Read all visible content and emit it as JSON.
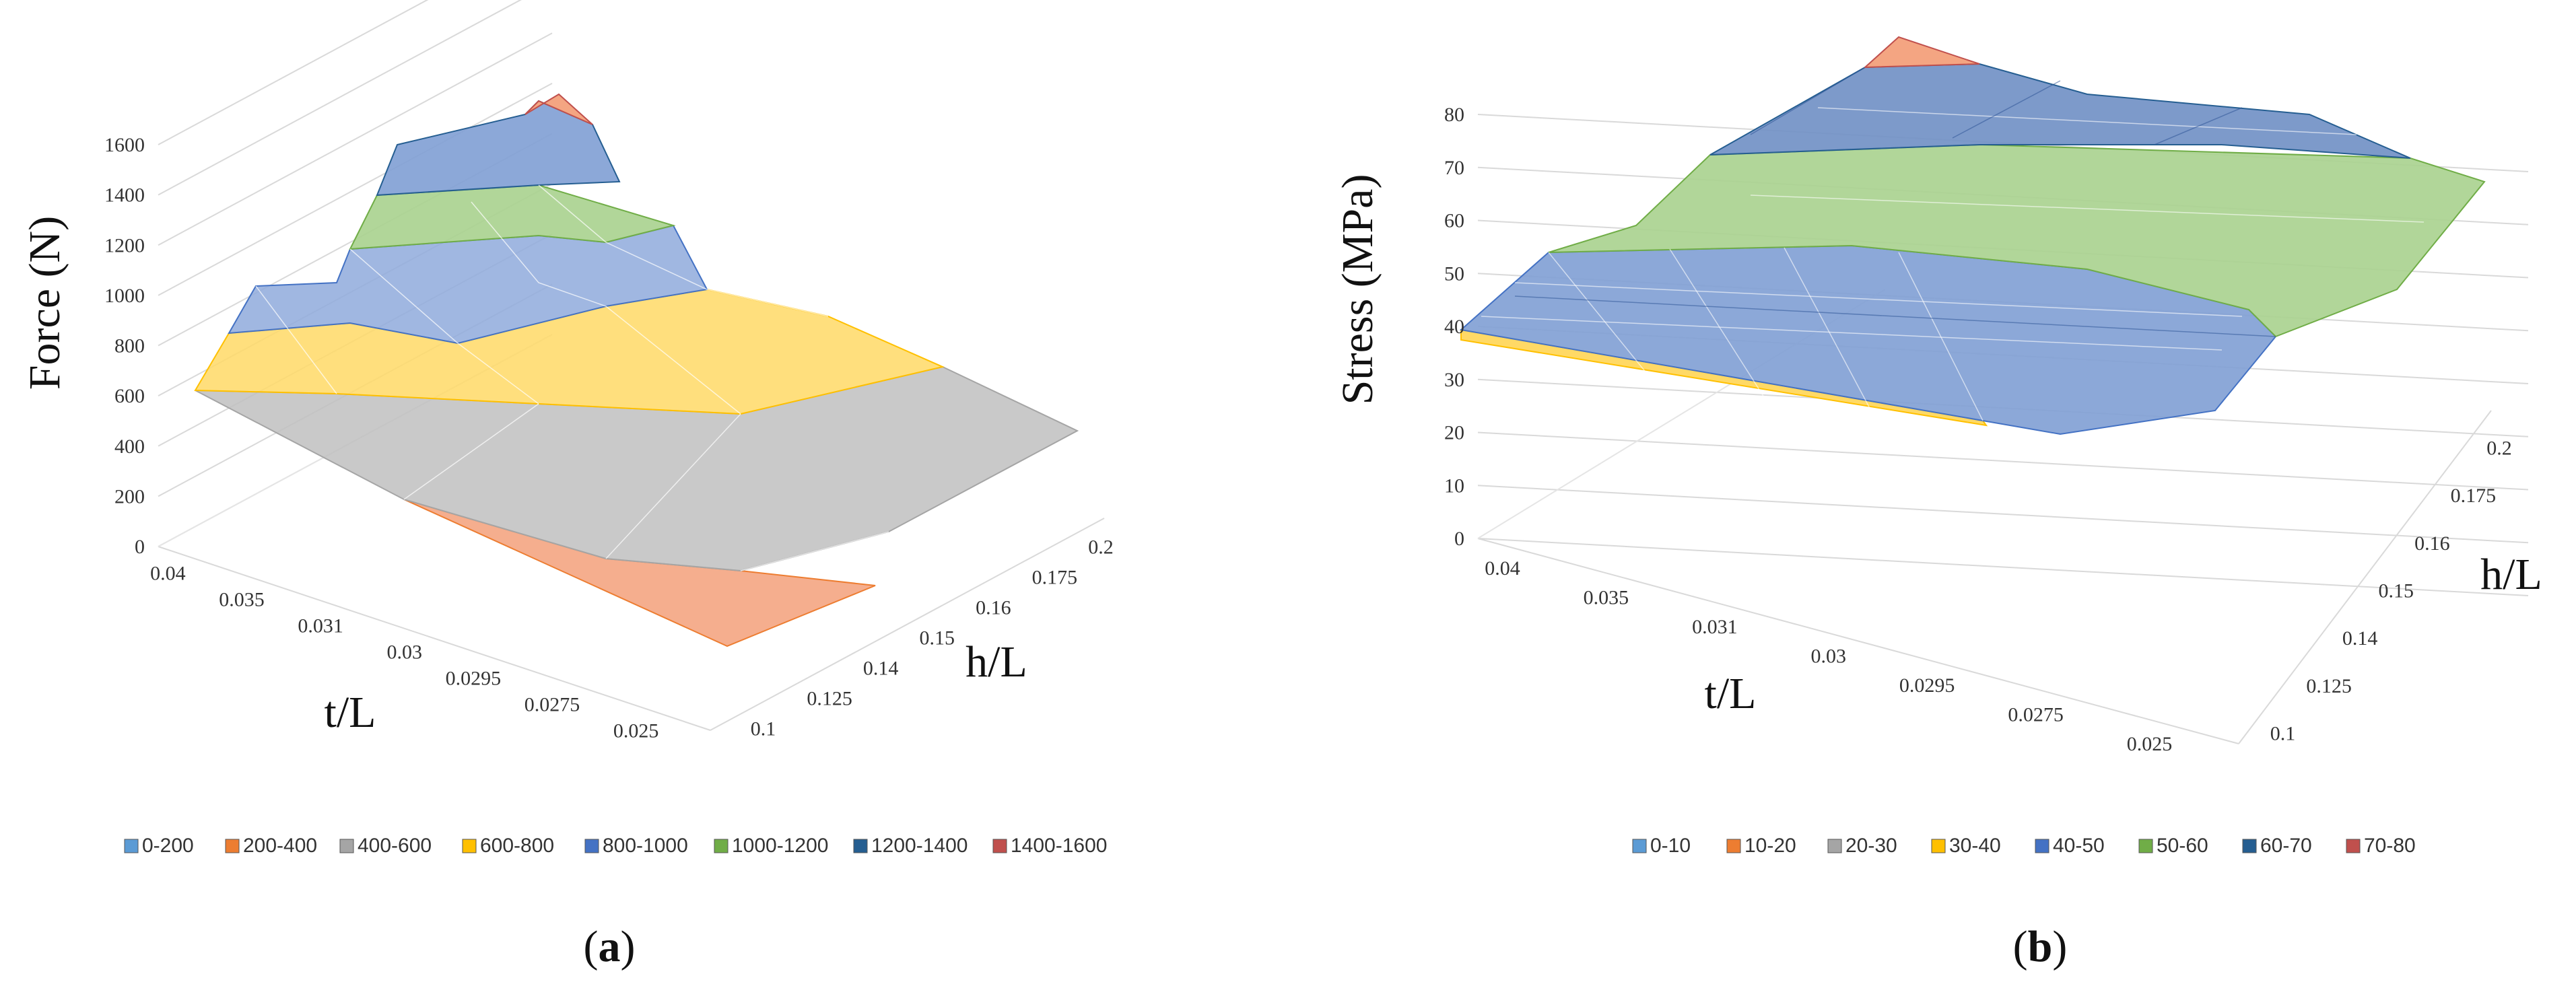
{
  "panels": [
    {
      "id": "a",
      "caption_open": "(",
      "caption_letter": "a",
      "caption_close": ")",
      "chart_data": {
        "type": "surface",
        "zlabel": "Force (N)",
        "xlabel": "t/L",
        "ylabel": "h/L",
        "z_ticks": [
          "0",
          "200",
          "400",
          "600",
          "800",
          "1000",
          "1200",
          "1400",
          "1600"
        ],
        "x_categories": [
          "0.04",
          "0.035",
          "0.031",
          "0.03",
          "0.0295",
          "0.0275",
          "0.025"
        ],
        "y_categories": [
          "0.1",
          "0.125",
          "0.14",
          "0.15",
          "0.16",
          "0.175",
          "0.2"
        ],
        "zlim": [
          0,
          1600
        ],
        "legend": [
          {
            "label": "0-200",
            "color": "#5b9bd5"
          },
          {
            "label": "200-400",
            "color": "#ed7d31"
          },
          {
            "label": "400-600",
            "color": "#a5a5a5"
          },
          {
            "label": "600-800",
            "color": "#ffc000"
          },
          {
            "label": "800-1000",
            "color": "#4472c4"
          },
          {
            "label": "1000-1200",
            "color": "#70ad47"
          },
          {
            "label": "1200-1400",
            "color": "#255e91"
          },
          {
            "label": "1400-1600",
            "color": "#c0504d"
          }
        ]
      }
    },
    {
      "id": "b",
      "caption_open": "(",
      "caption_letter": "b",
      "caption_close": ")",
      "chart_data": {
        "type": "surface",
        "zlabel": "Stress (MPa)",
        "xlabel": "t/L",
        "ylabel": "h/L",
        "z_ticks": [
          "0",
          "10",
          "20",
          "30",
          "40",
          "50",
          "60",
          "70",
          "80"
        ],
        "x_categories": [
          "0.04",
          "0.035",
          "0.031",
          "0.03",
          "0.0295",
          "0.0275",
          "0.025"
        ],
        "y_categories": [
          "0.1",
          "0.125",
          "0.14",
          "0.15",
          "0.16",
          "0.175",
          "0.2"
        ],
        "zlim": [
          0,
          80
        ],
        "legend": [
          {
            "label": "0-10",
            "color": "#5b9bd5"
          },
          {
            "label": "10-20",
            "color": "#ed7d31"
          },
          {
            "label": "20-30",
            "color": "#a5a5a5"
          },
          {
            "label": "30-40",
            "color": "#ffc000"
          },
          {
            "label": "40-50",
            "color": "#4472c4"
          },
          {
            "label": "50-60",
            "color": "#70ad47"
          },
          {
            "label": "60-70",
            "color": "#255e91"
          },
          {
            "label": "70-80",
            "color": "#c0504d"
          }
        ]
      }
    }
  ]
}
